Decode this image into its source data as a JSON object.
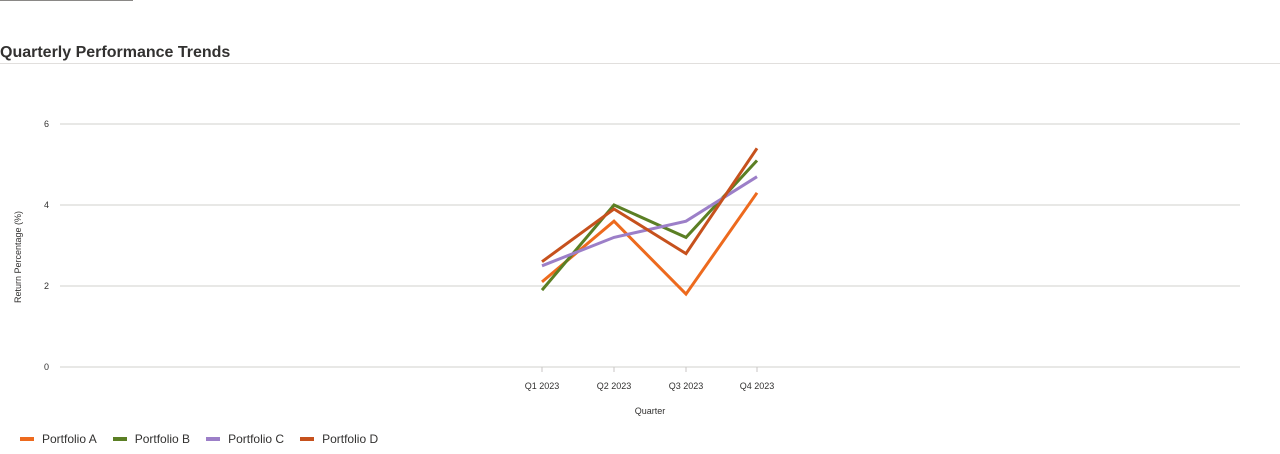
{
  "header": {
    "title": "Quarterly Performance Trends"
  },
  "chart_data": {
    "type": "line",
    "title": "",
    "xlabel": "Quarter",
    "ylabel": "Return Percentage (%)",
    "categories": [
      "Q1 2023",
      "Q2 2023",
      "Q3 2023",
      "Q4 2023"
    ],
    "yticks": [
      "0",
      "2",
      "4",
      "6"
    ],
    "ylim": [
      0,
      6
    ],
    "grid": true,
    "legend_position": "bottom-left",
    "series": [
      {
        "name": "Portfolio A",
        "color": "#ed6a1e",
        "values": [
          2.1,
          3.6,
          1.8,
          4.3
        ]
      },
      {
        "name": "Portfolio B",
        "color": "#5b7f24",
        "values": [
          1.9,
          4.0,
          3.2,
          5.1
        ]
      },
      {
        "name": "Portfolio C",
        "color": "#9c7fc8",
        "values": [
          2.5,
          3.2,
          3.6,
          4.7
        ]
      },
      {
        "name": "Portfolio D",
        "color": "#c6511d",
        "values": [
          2.6,
          3.9,
          2.8,
          5.4
        ]
      }
    ]
  }
}
